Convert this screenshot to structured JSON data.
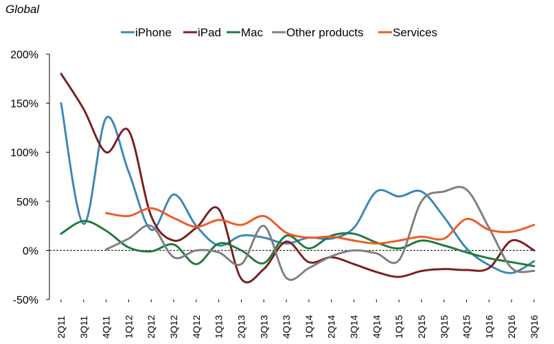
{
  "chart_data": {
    "type": "line",
    "title": "Global",
    "xlabel": "",
    "ylabel": "",
    "ylim": [
      -0.5,
      2.0
    ],
    "y_ticks": [
      -0.5,
      0,
      0.5,
      1.0,
      1.5,
      2.0
    ],
    "y_tick_labels": [
      "-50%",
      "0%",
      "50%",
      "100%",
      "150%",
      "200%"
    ],
    "categories": [
      "2Q11",
      "3Q11",
      "4Q11",
      "1Q12",
      "2Q12",
      "3Q12",
      "4Q12",
      "1Q13",
      "2Q13",
      "3Q13",
      "4Q13",
      "1Q14",
      "2Q14",
      "3Q14",
      "4Q14",
      "1Q15",
      "2Q15",
      "3Q15",
      "4Q15",
      "1Q16",
      "2Q16",
      "3Q16"
    ],
    "legend_position": "top",
    "zero_line": "dashed",
    "series": [
      {
        "name": "iPhone",
        "color": "#3D87B5",
        "values": [
          1.5,
          0.27,
          1.35,
          0.8,
          0.21,
          0.57,
          0.25,
          0.05,
          0.15,
          0.13,
          0.07,
          0.13,
          0.12,
          0.23,
          0.6,
          0.55,
          0.6,
          0.34,
          0.02,
          -0.15,
          -0.23,
          -0.11
        ]
      },
      {
        "name": "iPad",
        "color": "#7B1F1F",
        "values": [
          1.8,
          1.44,
          1.0,
          1.22,
          0.35,
          0.1,
          0.23,
          0.42,
          -0.29,
          -0.19,
          0.09,
          -0.12,
          -0.07,
          -0.14,
          -0.22,
          -0.27,
          -0.21,
          -0.19,
          -0.2,
          -0.18,
          0.1,
          0.0
        ]
      },
      {
        "name": "Mac",
        "color": "#1F7A3C",
        "values": [
          0.17,
          0.3,
          0.2,
          0.03,
          -0.01,
          0.06,
          -0.14,
          0.07,
          0.0,
          -0.13,
          0.15,
          0.02,
          0.15,
          0.17,
          0.08,
          0.02,
          0.1,
          0.05,
          -0.02,
          -0.08,
          -0.12,
          -0.16
        ]
      },
      {
        "name": "Other products",
        "color": "#7F7F7F",
        "values": [
          null,
          null,
          0.01,
          0.12,
          0.25,
          -0.07,
          0.0,
          -0.02,
          -0.14,
          0.25,
          -0.28,
          -0.18,
          -0.06,
          0.0,
          -0.03,
          -0.1,
          0.5,
          0.6,
          0.62,
          0.23,
          -0.18,
          -0.21
        ]
      },
      {
        "name": "Services",
        "color": "#F15A24",
        "values": [
          null,
          null,
          0.38,
          0.35,
          0.43,
          0.33,
          0.24,
          0.31,
          0.26,
          0.35,
          0.18,
          0.13,
          0.14,
          0.1,
          0.07,
          0.1,
          0.14,
          0.12,
          0.32,
          0.21,
          0.19,
          0.26
        ]
      }
    ]
  }
}
